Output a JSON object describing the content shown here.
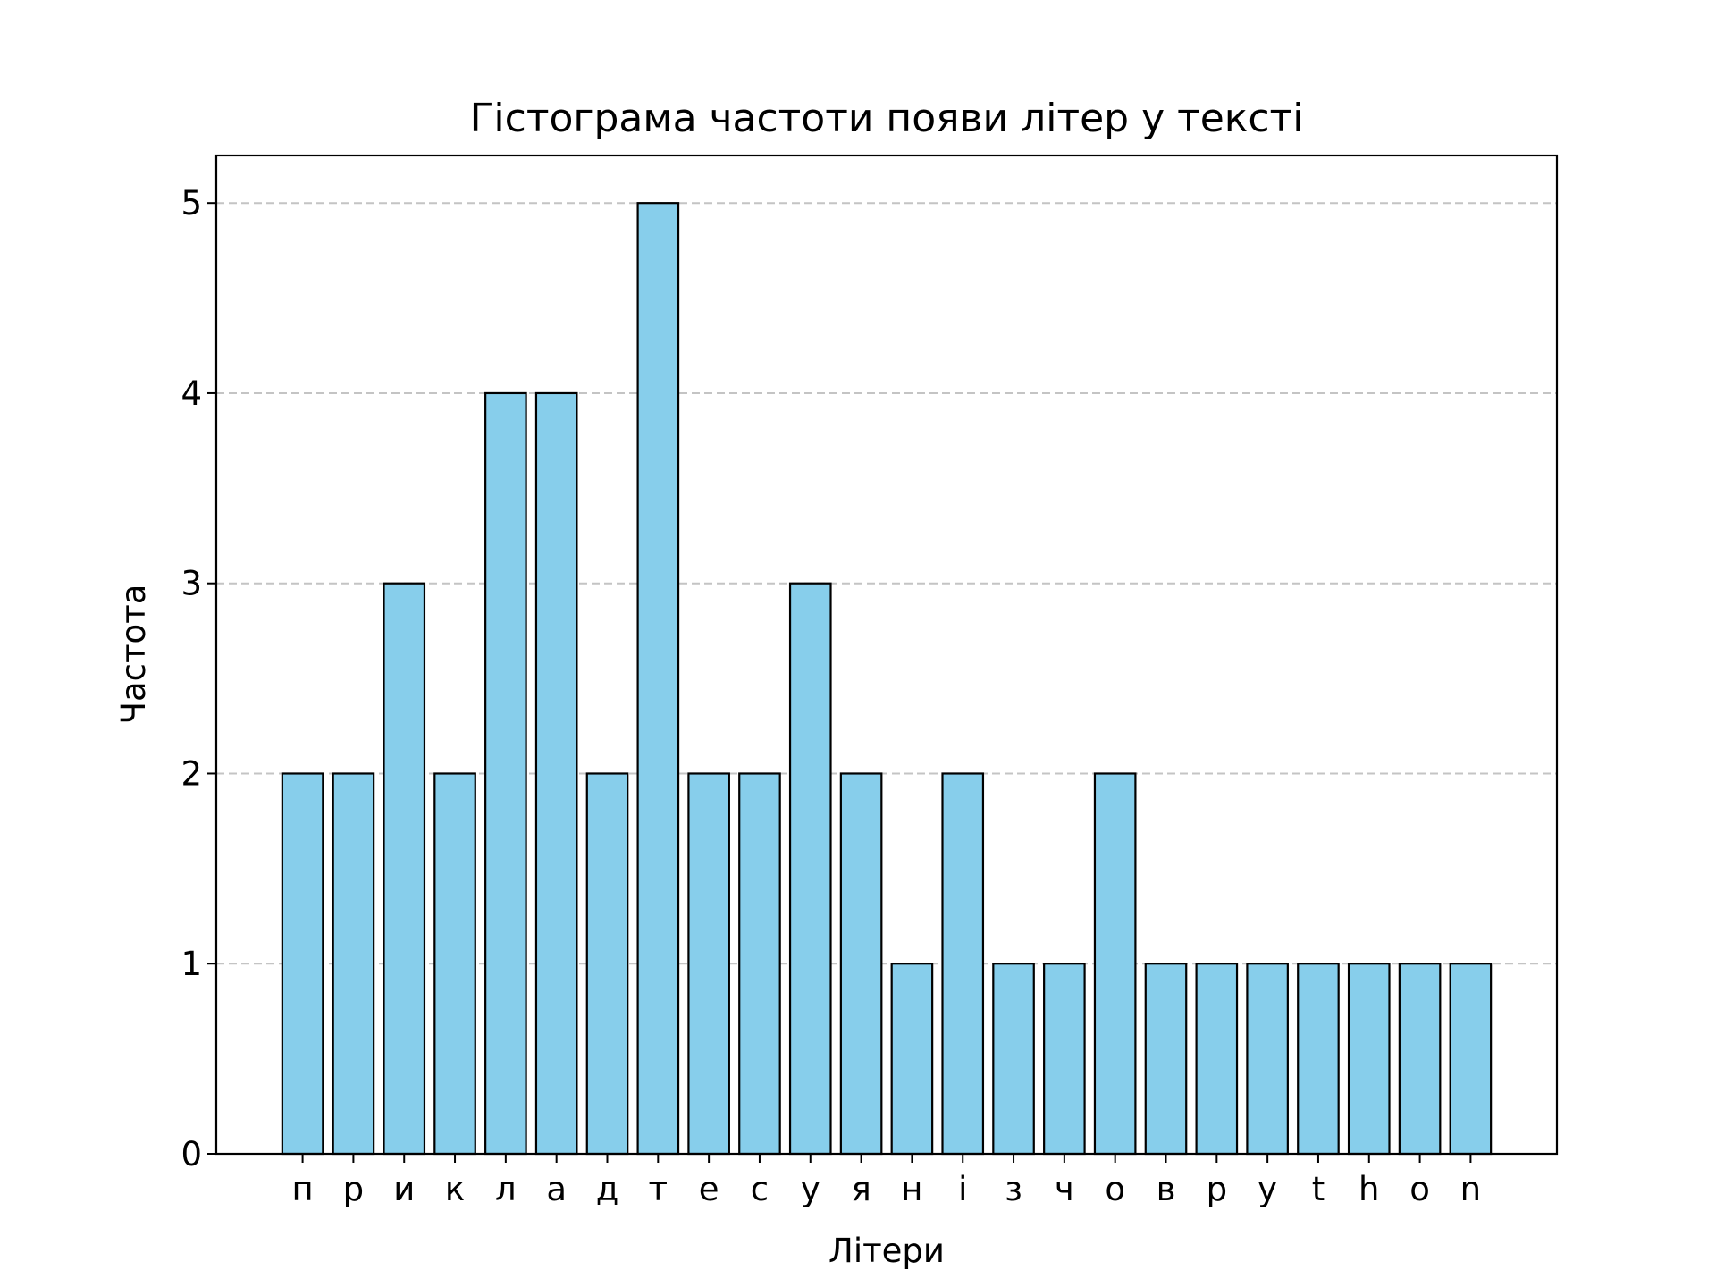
{
  "chart_data": {
    "type": "bar",
    "title": "Гістограма частоти появи літер у тексті",
    "xlabel": "Літери",
    "ylabel": "Частота",
    "categories": [
      "п",
      "р",
      "и",
      "к",
      "л",
      "а",
      "д",
      "т",
      "е",
      "с",
      "у",
      "я",
      "н",
      "і",
      "з",
      "ч",
      "о",
      "в",
      "p",
      "y",
      "t",
      "h",
      "o",
      "n"
    ],
    "values": [
      2,
      2,
      3,
      2,
      4,
      4,
      2,
      5,
      2,
      2,
      3,
      2,
      1,
      2,
      1,
      1,
      2,
      1,
      1,
      1,
      1,
      1,
      1,
      1
    ],
    "ylim": [
      0,
      5.25
    ],
    "yticks": [
      "0",
      "1",
      "2",
      "3",
      "4",
      "5"
    ],
    "grid": "y-dashed",
    "bar_color": "#87ceeb",
    "edge_color": "#000000",
    "grid_color": "#c4c4c4"
  }
}
